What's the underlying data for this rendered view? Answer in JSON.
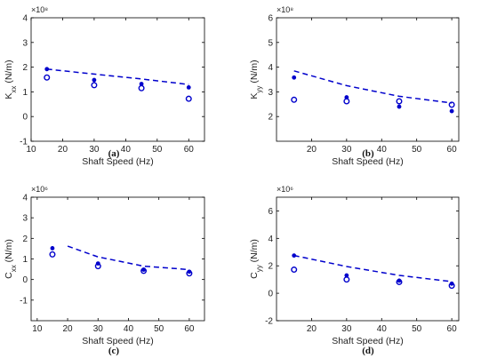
{
  "colors": {
    "series": "#0000cc",
    "axis": "#000000",
    "text": "#222222"
  },
  "chart_data": [
    {
      "type": "scatter",
      "panel_label": "(a)",
      "xlabel": "Shaft Speed (Hz)",
      "ylabel_main": "K",
      "ylabel_sub": "xx",
      "ylabel_unit": "(N/m)",
      "exponent": "×10⁸",
      "xlim": [
        10,
        65
      ],
      "ylim": [
        -1,
        4
      ],
      "xticks": [
        10,
        20,
        30,
        40,
        50,
        60
      ],
      "yticks": [
        -1,
        0,
        1,
        2,
        3,
        4
      ],
      "series": [
        {
          "marker": "filled",
          "x": [
            15,
            30,
            45,
            60
          ],
          "y": [
            1.92,
            1.48,
            1.32,
            1.18
          ]
        },
        {
          "marker": "open",
          "x": [
            15,
            30,
            45,
            60
          ],
          "y": [
            1.58,
            1.27,
            1.15,
            0.72
          ]
        },
        {
          "marker": "dashed-line",
          "x": [
            15,
            30,
            45,
            60
          ],
          "y": [
            1.92,
            1.72,
            1.52,
            1.3
          ]
        }
      ]
    },
    {
      "type": "scatter",
      "panel_label": "(b)",
      "xlabel": "Shaft Speed (Hz)",
      "ylabel_main": "K",
      "ylabel_sub": "yy",
      "ylabel_unit": "(N/m)",
      "exponent": "×10⁸",
      "xlim": [
        10,
        62
      ],
      "ylim": [
        1,
        6
      ],
      "xticks": [
        20,
        30,
        40,
        50,
        60
      ],
      "yticks": [
        2,
        3,
        4,
        5,
        6
      ],
      "series": [
        {
          "marker": "filled",
          "x": [
            15,
            30,
            45,
            60
          ],
          "y": [
            3.58,
            2.78,
            2.4,
            2.22
          ]
        },
        {
          "marker": "open",
          "x": [
            15,
            30,
            45,
            60
          ],
          "y": [
            2.68,
            2.62,
            2.62,
            2.48
          ]
        },
        {
          "marker": "dashed-line",
          "x": [
            15,
            30,
            45,
            60
          ],
          "y": [
            3.85,
            3.25,
            2.82,
            2.55
          ]
        }
      ]
    },
    {
      "type": "scatter",
      "panel_label": "(c)",
      "xlabel": "Shaft Speed (Hz)",
      "ylabel_main": "C",
      "ylabel_sub": "xx",
      "ylabel_unit": "(N/m)",
      "exponent": "×10⁶",
      "xlim": [
        8,
        65
      ],
      "ylim": [
        -2,
        4
      ],
      "xticks": [
        10,
        20,
        30,
        40,
        50,
        60
      ],
      "yticks": [
        -1,
        0,
        1,
        2,
        3,
        4
      ],
      "series": [
        {
          "marker": "filled",
          "x": [
            15,
            30,
            45,
            60
          ],
          "y": [
            1.52,
            0.78,
            0.48,
            0.38
          ]
        },
        {
          "marker": "open",
          "x": [
            15,
            30,
            45,
            60
          ],
          "y": [
            1.22,
            0.65,
            0.42,
            0.3
          ]
        },
        {
          "marker": "dashed-line",
          "x": [
            20,
            30,
            45,
            60
          ],
          "y": [
            1.62,
            1.1,
            0.65,
            0.48
          ]
        }
      ]
    },
    {
      "type": "scatter",
      "panel_label": "(d)",
      "xlabel": "Shaft Speed (Hz)",
      "ylabel_main": "C",
      "ylabel_sub": "yy",
      "ylabel_unit": "(N/m)",
      "exponent": "×10⁶",
      "xlim": [
        10,
        62
      ],
      "ylim": [
        -2,
        7
      ],
      "xticks": [
        20,
        30,
        40,
        50,
        60
      ],
      "yticks": [
        -2,
        0,
        2,
        4,
        6
      ],
      "series": [
        {
          "marker": "filled",
          "x": [
            15,
            30,
            45,
            60
          ],
          "y": [
            2.75,
            1.3,
            0.92,
            0.7
          ]
        },
        {
          "marker": "open",
          "x": [
            15,
            30,
            45,
            60
          ],
          "y": [
            1.72,
            1.0,
            0.82,
            0.55
          ]
        },
        {
          "marker": "dashed-line",
          "x": [
            15,
            30,
            45,
            60
          ],
          "y": [
            2.75,
            1.95,
            1.3,
            0.85
          ]
        }
      ]
    }
  ]
}
